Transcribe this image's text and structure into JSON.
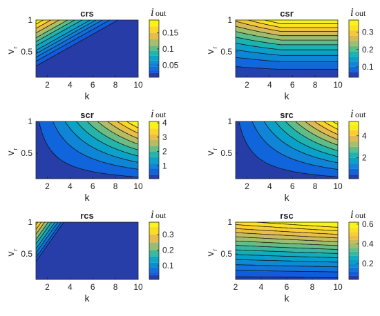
{
  "figure": {
    "colorbar_label_main": "i",
    "colorbar_label_sub": "out",
    "ylabel_main": "v",
    "ylabel_sub": "r",
    "xlabel": "k"
  },
  "chart_data": [
    {
      "type": "heatmap",
      "title": "crs",
      "model": "crs",
      "xlabel": "k",
      "ylabel": "v_r",
      "xlim": [
        1,
        10
      ],
      "ylim": [
        0.1,
        1
      ],
      "xticks": [
        2,
        4,
        6,
        8,
        10
      ],
      "yticks": [
        0.5,
        1
      ],
      "colorbar_label": "i_out",
      "crange": [
        0.012,
        0.19
      ],
      "cticks": [
        0.05,
        0.1,
        0.15
      ],
      "levels": [
        0.025,
        0.035,
        0.045,
        0.055,
        0.065,
        0.08,
        0.095,
        0.11,
        0.13,
        0.15,
        0.17
      ]
    },
    {
      "type": "heatmap",
      "title": "csr",
      "model": "csr",
      "xlabel": "k",
      "ylabel": "v_r",
      "xlim": [
        1,
        10
      ],
      "ylim": [
        0.1,
        1
      ],
      "xticks": [
        2,
        4,
        6,
        8,
        10
      ],
      "yticks": [
        0.5,
        1
      ],
      "colorbar_label": "i_out",
      "crange": [
        0.04,
        0.37
      ],
      "cticks": [
        0.1,
        0.2,
        0.3
      ],
      "levels": [
        0.07,
        0.1,
        0.13,
        0.16,
        0.19,
        0.22,
        0.25,
        0.28,
        0.31,
        0.34
      ]
    },
    {
      "type": "heatmap",
      "title": "scr",
      "model": "scr",
      "xlabel": "k",
      "ylabel": "v_r",
      "xlim": [
        1,
        10
      ],
      "ylim": [
        0.1,
        1
      ],
      "xticks": [
        2,
        4,
        6,
        8,
        10
      ],
      "yticks": [
        0.5,
        1
      ],
      "colorbar_label": "i_out",
      "crange": [
        0.1,
        4.1
      ],
      "cticks": [
        1,
        2,
        3,
        4
      ],
      "levels": [
        0.4,
        0.8,
        1.2,
        1.6,
        2.0,
        2.4,
        2.8,
        3.2,
        3.6
      ]
    },
    {
      "type": "heatmap",
      "title": "src",
      "model": "src",
      "xlabel": "k",
      "ylabel": "v_r",
      "xlim": [
        1,
        10
      ],
      "ylim": [
        0.1,
        1
      ],
      "xticks": [
        2,
        4,
        6,
        8,
        10
      ],
      "yticks": [
        0.5,
        1
      ],
      "colorbar_label": "i_out",
      "crange": [
        0.1,
        5.3
      ],
      "cticks": [
        2,
        4
      ],
      "levels": [
        0.5,
        1.0,
        1.5,
        2.0,
        2.5,
        3.0,
        3.5,
        4.0,
        4.5,
        5.0
      ]
    },
    {
      "type": "heatmap",
      "title": "rcs",
      "model": "rcs",
      "xlabel": "k",
      "ylabel": "v_r",
      "xlim": [
        1,
        10
      ],
      "ylim": [
        0.1,
        1
      ],
      "xticks": [
        2,
        4,
        6,
        8,
        10
      ],
      "yticks": [
        0.5,
        1
      ],
      "colorbar_label": "i_out",
      "crange": [
        0.012,
        0.38
      ],
      "cticks": [
        0.1,
        0.2,
        0.3
      ],
      "levels": [
        0.04,
        0.06,
        0.09,
        0.12,
        0.16,
        0.2,
        0.25,
        0.3,
        0.35
      ]
    },
    {
      "type": "heatmap",
      "title": "rsc",
      "model": "rsc",
      "xlabel": "k",
      "ylabel": "v_r",
      "xlim": [
        2,
        10
      ],
      "ylim": [
        0.1,
        1
      ],
      "xticks": [
        2,
        4,
        6,
        8,
        10
      ],
      "yticks": [
        0.5,
        1
      ],
      "colorbar_label": "i_out",
      "crange": [
        0.04,
        0.62
      ],
      "cticks": [
        0.2,
        0.4,
        0.6
      ],
      "levels": [
        0.08,
        0.12,
        0.16,
        0.2,
        0.24,
        0.28,
        0.32,
        0.36,
        0.4,
        0.44,
        0.48,
        0.52,
        0.56
      ]
    }
  ]
}
